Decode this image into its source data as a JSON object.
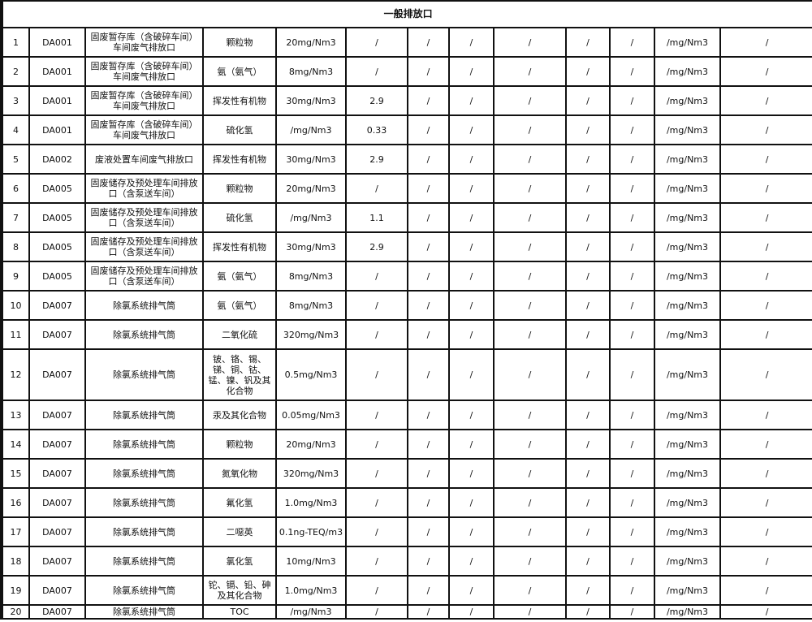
{
  "title": "一般排放口",
  "rows": [
    [
      "1",
      "DA001",
      "固废暂存库（含破碎车间）车间废气排放口",
      "颗粒物",
      "20mg/Nm3",
      "/",
      "/",
      "/",
      "/",
      "/",
      "/",
      "/mg/Nm3",
      "/"
    ],
    [
      "2",
      "DA001",
      "固废暂存库（含破碎车间）车间废气排放口",
      "氨（氨气）",
      "8mg/Nm3",
      "/",
      "/",
      "/",
      "/",
      "/",
      "/",
      "/mg/Nm3",
      "/"
    ],
    [
      "3",
      "DA001",
      "固废暂存库（含破碎车间）车间废气排放口",
      "挥发性有机物",
      "30mg/Nm3",
      "2.9",
      "/",
      "/",
      "/",
      "/",
      "/",
      "/mg/Nm3",
      "/"
    ],
    [
      "4",
      "DA001",
      "固废暂存库（含破碎车间）车间废气排放口",
      "硫化氢",
      "/mg/Nm3",
      "0.33",
      "/",
      "/",
      "/",
      "/",
      "/",
      "/mg/Nm3",
      "/"
    ],
    [
      "5",
      "DA002",
      "废液处置车间废气排放口",
      "挥发性有机物",
      "30mg/Nm3",
      "2.9",
      "/",
      "/",
      "/",
      "/",
      "/",
      "/mg/Nm3",
      "/"
    ],
    [
      "6",
      "DA005",
      "固废储存及预处理车间排放口（含泵送车间）",
      "颗粒物",
      "20mg/Nm3",
      "/",
      "/",
      "/",
      "/",
      "/",
      "/",
      "/mg/Nm3",
      "/"
    ],
    [
      "7",
      "DA005",
      "固废储存及预处理车间排放口（含泵送车间）",
      "硫化氢",
      "/mg/Nm3",
      "1.1",
      "/",
      "/",
      "/",
      "/",
      "/",
      "/mg/Nm3",
      "/"
    ],
    [
      "8",
      "DA005",
      "固废储存及预处理车间排放口（含泵送车间）",
      "挥发性有机物",
      "30mg/Nm3",
      "2.9",
      "/",
      "/",
      "/",
      "/",
      "/",
      "/mg/Nm3",
      "/"
    ],
    [
      "9",
      "DA005",
      "固废储存及预处理车间排放口（含泵送车间）",
      "氨（氨气）",
      "8mg/Nm3",
      "/",
      "/",
      "/",
      "/",
      "/",
      "/",
      "/mg/Nm3",
      "/"
    ],
    [
      "10",
      "DA007",
      "除氯系统排气筒",
      "氨（氨气）",
      "8mg/Nm3",
      "/",
      "/",
      "/",
      "/",
      "/",
      "/",
      "/mg/Nm3",
      "/"
    ],
    [
      "11",
      "DA007",
      "除氯系统排气筒",
      "二氧化硫",
      "320mg/Nm3",
      "/",
      "/",
      "/",
      "/",
      "/",
      "/",
      "/mg/Nm3",
      "/"
    ],
    [
      "12",
      "DA007",
      "除氯系统排气筒",
      "铍、铬、锡、锑、铜、钴、锰、镍、钒及其化合物",
      "0.5mg/Nm3",
      "/",
      "/",
      "/",
      "/",
      "/",
      "/",
      "/mg/Nm3",
      "/"
    ],
    [
      "13",
      "DA007",
      "除氯系统排气筒",
      "汞及其化合物",
      "0.05mg/Nm3",
      "/",
      "/",
      "/",
      "/",
      "/",
      "/",
      "/mg/Nm3",
      "/"
    ],
    [
      "14",
      "DA007",
      "除氯系统排气筒",
      "颗粒物",
      "20mg/Nm3",
      "/",
      "/",
      "/",
      "/",
      "/",
      "/",
      "/mg/Nm3",
      "/"
    ],
    [
      "15",
      "DA007",
      "除氯系统排气筒",
      "氮氧化物",
      "320mg/Nm3",
      "/",
      "/",
      "/",
      "/",
      "/",
      "/",
      "/mg/Nm3",
      "/"
    ],
    [
      "16",
      "DA007",
      "除氯系统排气筒",
      "氟化氢",
      "1.0mg/Nm3",
      "/",
      "/",
      "/",
      "/",
      "/",
      "/",
      "/mg/Nm3",
      "/"
    ],
    [
      "17",
      "DA007",
      "除氯系统排气筒",
      "二噁英",
      "0.1ng-TEQ/m3",
      "/",
      "/",
      "/",
      "/",
      "/",
      "/",
      "/mg/Nm3",
      "/"
    ],
    [
      "18",
      "DA007",
      "除氯系统排气筒",
      "氯化氢",
      "10mg/Nm3",
      "/",
      "/",
      "/",
      "/",
      "/",
      "/",
      "/mg/Nm3",
      "/"
    ],
    [
      "19",
      "DA007",
      "除氯系统排气筒",
      "铊、镉、铅、砷及其化合物",
      "1.0mg/Nm3",
      "/",
      "/",
      "/",
      "/",
      "/",
      "/",
      "/mg/Nm3",
      "/"
    ],
    [
      "20",
      "DA007",
      "除氯系统排气筒",
      "TOC",
      "/mg/Nm3",
      "/",
      "/",
      "/",
      "/",
      "/",
      "/",
      "/mg/Nm3",
      "/"
    ]
  ]
}
